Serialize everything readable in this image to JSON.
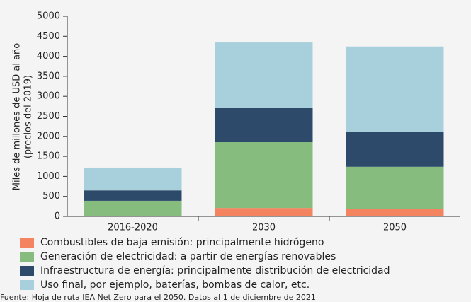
{
  "chart_data": {
    "type": "stacked_bar",
    "y_label": [
      "Miles de millones de USD al año",
      "(precios del 2019)"
    ],
    "categories": [
      "2016-2020",
      "2030",
      "2050"
    ],
    "series": [
      {
        "name": "Combustibles de baja emisión: principalmente hidrógeno",
        "color": "#f4845f",
        "values": [
          0,
          210,
          180
        ]
      },
      {
        "name": "Generación de electricidad: a partir de energías renovables",
        "color": "#86bc7e",
        "values": [
          390,
          1645,
          1060
        ]
      },
      {
        "name": "Infraestructura de energía: principalmente distribución de electricidad",
        "color": "#2e4a6b",
        "values": [
          260,
          850,
          865
        ]
      },
      {
        "name": "Uso final, por ejemplo, baterías, bombas de calor, etc.",
        "color": "#a7cfdc",
        "values": [
          570,
          1640,
          2140
        ]
      }
    ],
    "ylim": [
      0,
      5000
    ],
    "yticks": [
      0,
      500,
      1000,
      1500,
      2000,
      2500,
      3000,
      3500,
      4000,
      4500,
      5000
    ],
    "source": "Fuente: Hoja de ruta IEA Net Zero para el 2050. Datos al 1 de diciembre de 2021"
  }
}
